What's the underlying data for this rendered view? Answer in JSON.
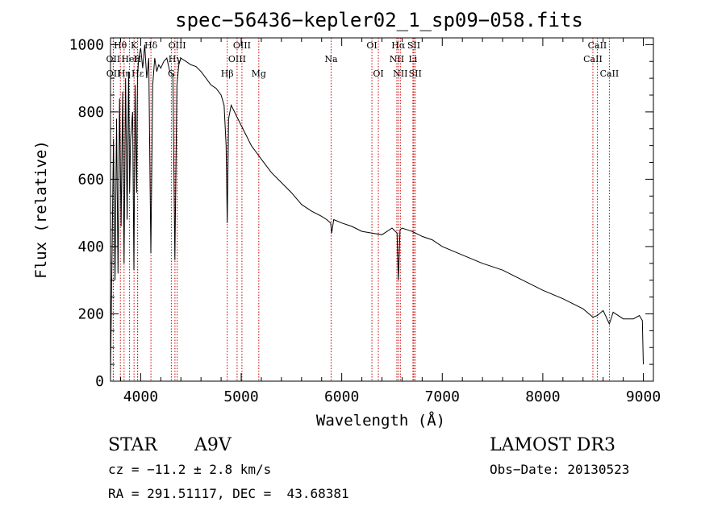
{
  "chart_data": {
    "type": "line",
    "title": "spec−56436−kepler02_1_sp09−058.fits",
    "xlabel": "Wavelength (Å)",
    "ylabel": "Flux (relative)",
    "xlim": [
      3700,
      9100
    ],
    "ylim": [
      0,
      1020
    ],
    "xticks": [
      4000,
      5000,
      6000,
      7000,
      8000,
      9000
    ],
    "yticks": [
      0,
      200,
      400,
      600,
      800,
      1000
    ],
    "line_color": "#000000",
    "marker_color": "#cc0000",
    "series": [
      {
        "name": "spectrum",
        "x": [
          3700,
          3715,
          3730,
          3745,
          3760,
          3775,
          3790,
          3805,
          3820,
          3835,
          3850,
          3865,
          3880,
          3890,
          3900,
          3920,
          3933,
          3945,
          3960,
          3968,
          3980,
          4000,
          4020,
          4040,
          4060,
          4080,
          4101,
          4120,
          4140,
          4160,
          4180,
          4200,
          4230,
          4260,
          4290,
          4320,
          4340,
          4360,
          4380,
          4400,
          4450,
          4500,
          4550,
          4600,
          4650,
          4700,
          4750,
          4800,
          4830,
          4850,
          4861,
          4875,
          4900,
          4950,
          5000,
          5050,
          5100,
          5150,
          5200,
          5300,
          5400,
          5500,
          5600,
          5700,
          5800,
          5850,
          5890,
          5900,
          5920,
          6000,
          6100,
          6200,
          6300,
          6400,
          6500,
          6550,
          6563,
          6580,
          6600,
          6700,
          6800,
          6900,
          7000,
          7200,
          7400,
          7600,
          7800,
          8000,
          8200,
          8400,
          8498,
          8542,
          8600,
          8662,
          8700,
          8800,
          8900,
          8960,
          8990,
          9000
        ],
        "y": [
          20,
          380,
          720,
          300,
          780,
          320,
          840,
          460,
          860,
          350,
          900,
          480,
          920,
          560,
          720,
          800,
          330,
          880,
          560,
          900,
          960,
          990,
          930,
          1000,
          900,
          960,
          380,
          880,
          960,
          920,
          940,
          930,
          950,
          960,
          920,
          910,
          360,
          880,
          940,
          960,
          950,
          940,
          935,
          920,
          900,
          880,
          870,
          850,
          820,
          700,
          470,
          780,
          820,
          790,
          760,
          730,
          700,
          680,
          660,
          620,
          590,
          560,
          525,
          505,
          490,
          480,
          470,
          440,
          480,
          470,
          460,
          445,
          440,
          435,
          455,
          440,
          300,
          450,
          455,
          445,
          430,
          420,
          400,
          375,
          350,
          330,
          300,
          270,
          245,
          215,
          190,
          195,
          210,
          170,
          205,
          185,
          185,
          195,
          180,
          50
        ]
      }
    ],
    "lines": [
      {
        "label": "OII",
        "x": 3727,
        "row": 1
      },
      {
        "label": "OII",
        "x": 3729,
        "row": 2
      },
      {
        "label": "Hθ",
        "x": 3798,
        "row": 0
      },
      {
        "label": "Hη",
        "x": 3835,
        "row": 2
      },
      {
        "label": "HeI",
        "x": 3889,
        "row": 1
      },
      {
        "label": "K",
        "x": 3934,
        "row": 0
      },
      {
        "label": "Hε",
        "x": 3970,
        "row": 2
      },
      {
        "label": "H",
        "x": 3969,
        "row": 1
      },
      {
        "label": "Hδ",
        "x": 4102,
        "row": 0
      },
      {
        "label": "G",
        "x": 4305,
        "row": 2
      },
      {
        "label": "Hγ",
        "x": 4341,
        "row": 1
      },
      {
        "label": "OIII",
        "x": 4363,
        "row": 0
      },
      {
        "label": "Hβ",
        "x": 4861,
        "row": 3
      },
      {
        "label": "OIII",
        "x": 4959,
        "row": 1
      },
      {
        "label": "OIII",
        "x": 5007,
        "row": 0
      },
      {
        "label": "Mg",
        "x": 5175,
        "row": 3
      },
      {
        "label": "Na",
        "x": 5894,
        "row": 1
      },
      {
        "label": "OI",
        "x": 6300,
        "row": 0
      },
      {
        "label": "OI",
        "x": 6364,
        "row": 2
      },
      {
        "label": "NII",
        "x": 6548,
        "row": 1
      },
      {
        "label": "Hα",
        "x": 6563,
        "row": 0
      },
      {
        "label": "NII",
        "x": 6583,
        "row": 2
      },
      {
        "label": "Li",
        "x": 6708,
        "row": 1
      },
      {
        "label": "SII",
        "x": 6717,
        "row": 0
      },
      {
        "label": "SII",
        "x": 6731,
        "row": 2
      },
      {
        "label": "CaII",
        "x": 8498,
        "row": 1
      },
      {
        "label": "CaII",
        "x": 8542,
        "row": 0
      },
      {
        "label": "CaII",
        "x": 8662,
        "row": 2
      }
    ]
  },
  "info": {
    "object_type": "STAR",
    "subclass": "A9V",
    "survey": "LAMOST DR3",
    "cz": "cz = −11.2 ± 2.8 km/s",
    "obs_date": "Obs−Date: 20130523",
    "coords": "RA = 291.51117, DEC =  43.68381"
  }
}
